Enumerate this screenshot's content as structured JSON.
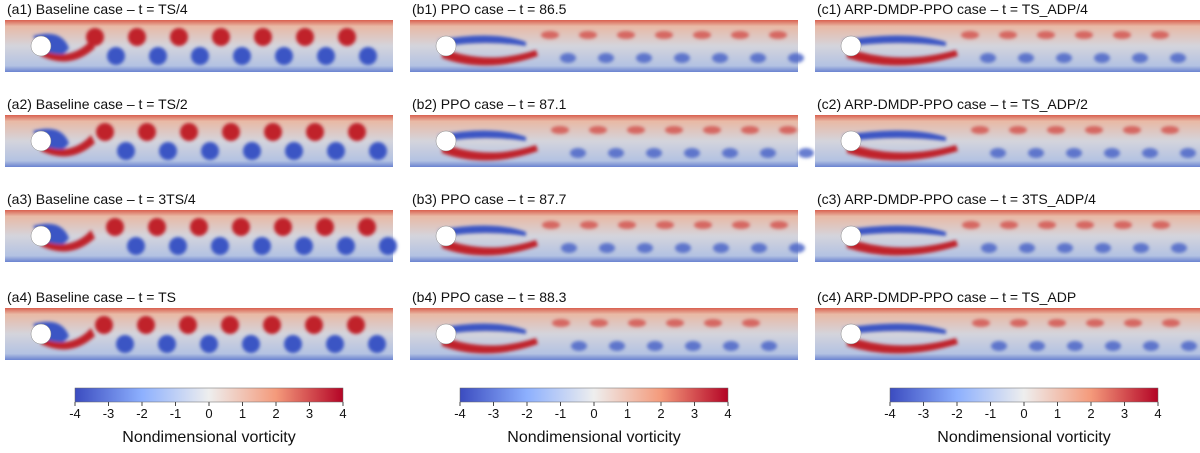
{
  "panels": [
    {
      "caption": "(a1) Baseline case – t = TS/4"
    },
    {
      "caption": "(a2) Baseline case – t = TS/2"
    },
    {
      "caption": "(a3) Baseline case – t = 3TS/4"
    },
    {
      "caption": "(a4) Baseline case – t = TS"
    },
    {
      "caption": "(b1) PPO case – t = 86.5"
    },
    {
      "caption": "(b2) PPO case – t = 87.1"
    },
    {
      "caption": "(b3) PPO case – t = 87.7"
    },
    {
      "caption": "(b4) PPO case – t = 88.3"
    },
    {
      "caption": "(c1) ARP-DMDP-PPO case – t = TS_ADP/4"
    },
    {
      "caption": "(c2) ARP-DMDP-PPO case – t = TS_ADP/2"
    },
    {
      "caption": "(c3) ARP-DMDP-PPO case – t = 3TS_ADP/4"
    },
    {
      "caption": "(c4) ARP-DMDP-PPO case – t = TS_ADP"
    }
  ],
  "colorbars": [
    {
      "range": [
        -4,
        4
      ],
      "ticks": [
        -4,
        -3,
        -2,
        -1,
        0,
        1,
        2,
        3,
        4
      ],
      "label": "Nondimensional vorticity"
    },
    {
      "range": [
        -4,
        4
      ],
      "ticks": [
        -4,
        -3,
        -2,
        -1,
        0,
        1,
        2,
        3,
        4
      ],
      "label": "Nondimensional vorticity"
    },
    {
      "range": [
        -4,
        4
      ],
      "ticks": [
        -4,
        -3,
        -2,
        -1,
        0,
        1,
        2,
        3,
        4
      ],
      "label": "Nondimensional vorticity"
    }
  ]
}
